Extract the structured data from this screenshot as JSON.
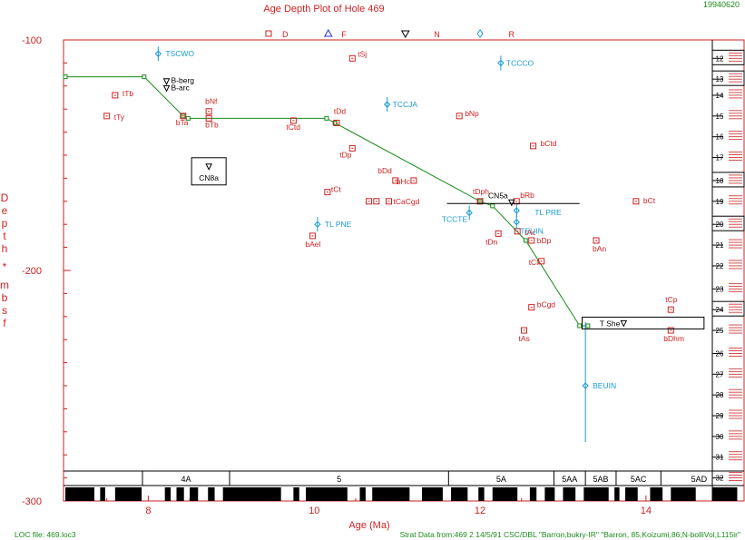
{
  "header": {
    "title": "Age Depth Plot of Hole 469",
    "date_code": "19940620"
  },
  "footer": {
    "loc_file": "LOC file: 469.loc3",
    "strat_source": "Strat Data from:469 2 14/5/91 CSC/DBL \"Barron,bukry-IR\" \"Barron, 85,Koizumi,86;N-bolliVol,L115ir\""
  },
  "colors": {
    "axis": "#cc2222",
    "loc_line": "#1a8a1a",
    "diatom": "#1a9ad4",
    "nanno": "#cc2222",
    "event_black": "#000000"
  },
  "top_markers": [
    {
      "age": 9.45,
      "label": "",
      "symbol": "square",
      "color": "#cc2222"
    },
    {
      "age": 9.65,
      "label": "D",
      "symbol": "",
      "color": "#cc2222"
    },
    {
      "age": 10.17,
      "label": "",
      "symbol": "triangle-up",
      "color": "#2233cc"
    },
    {
      "age": 10.36,
      "label": "F",
      "symbol": "",
      "color": "#cc2222"
    },
    {
      "age": 11.1,
      "label": "",
      "symbol": "triangle-down",
      "color": "#000000"
    },
    {
      "age": 11.48,
      "label": "N",
      "symbol": "",
      "color": "#cc2222"
    },
    {
      "age": 12.0,
      "label": "",
      "symbol": "diamond",
      "color": "#1a9ad4"
    },
    {
      "age": 12.38,
      "label": "R",
      "symbol": "",
      "color": "#cc2222"
    }
  ],
  "chart_data": {
    "type": "scatter",
    "title": "Age Depth Plot of Hole 469",
    "xlabel": "Age (Ma)",
    "ylabel": "Depth * mbsf",
    "xlim": [
      7.0,
      15.1
    ],
    "ylim": [
      -100,
      -300
    ],
    "x_ticks": [
      8,
      10,
      12,
      14
    ],
    "y_ticks": [
      -100,
      -200,
      -300
    ],
    "loc_line": [
      [
        7.0,
        -116
      ],
      [
        7.95,
        -116
      ],
      [
        8.42,
        -133
      ],
      [
        8.48,
        -134
      ],
      [
        10.15,
        -134
      ],
      [
        10.25,
        -136
      ],
      [
        12.0,
        -170
      ],
      [
        12.15,
        -172
      ],
      [
        12.55,
        -187
      ],
      [
        13.2,
        -224
      ],
      [
        13.3,
        -224
      ]
    ],
    "events": [
      {
        "label": "tTb",
        "group": "nanno",
        "age": 7.6,
        "depth": -124
      },
      {
        "label": "tTy",
        "group": "nanno",
        "age": 7.5,
        "depth": -133
      },
      {
        "label": "bTa",
        "group": "nanno",
        "age": 8.42,
        "depth": -133
      },
      {
        "label": "bNf",
        "group": "nanno",
        "age": 8.73,
        "depth": -131
      },
      {
        "label": "bTb",
        "group": "nanno",
        "age": 8.73,
        "depth": -134
      },
      {
        "label": "tCtd",
        "group": "nanno",
        "age": 9.75,
        "depth": -135
      },
      {
        "label": "tSj",
        "group": "nanno",
        "age": 10.46,
        "depth": -108
      },
      {
        "label": "tDd",
        "group": "nanno",
        "age": 10.27,
        "depth": -136
      },
      {
        "label": "tDp",
        "group": "nanno",
        "age": 10.46,
        "depth": -147
      },
      {
        "label": "tCt",
        "group": "nanno",
        "age": 10.16,
        "depth": -166
      },
      {
        "label": "bDd",
        "group": "nanno",
        "age": 10.98,
        "depth": -161
      },
      {
        "label": "bHc",
        "group": "nanno",
        "age": 11.2,
        "depth": -161
      },
      {
        "label": "",
        "group": "nanno",
        "age": 10.66,
        "depth": -170
      },
      {
        "label": "",
        "group": "nanno",
        "age": 10.75,
        "depth": -170
      },
      {
        "label": "tCaCgd",
        "group": "nanno",
        "age": 10.9,
        "depth": -170
      },
      {
        "label": "bAel",
        "group": "nanno",
        "age": 9.98,
        "depth": -185
      },
      {
        "label": "bNp",
        "group": "nanno",
        "age": 11.75,
        "depth": -133
      },
      {
        "label": "bCtd",
        "group": "nanno",
        "age": 12.64,
        "depth": -146
      },
      {
        "label": "tDph",
        "group": "nanno",
        "age": 12.0,
        "depth": -170
      },
      {
        "label": "bRb",
        "group": "nanno",
        "age": 12.44,
        "depth": -170
      },
      {
        "label": "tDn",
        "group": "nanno",
        "age": 12.22,
        "depth": -184
      },
      {
        "label": "tAc",
        "group": "nanno",
        "age": 12.45,
        "depth": -183
      },
      {
        "label": "bDp",
        "group": "nanno",
        "age": 12.62,
        "depth": -187
      },
      {
        "label": "tCl",
        "group": "nanno",
        "age": 12.74,
        "depth": -196
      },
      {
        "label": "bCgd",
        "group": "nanno",
        "age": 12.62,
        "depth": -216
      },
      {
        "label": "tAs",
        "group": "nanno",
        "age": 12.53,
        "depth": -226
      },
      {
        "label": "bAn",
        "group": "nanno",
        "age": 13.4,
        "depth": -187
      },
      {
        "label": "bCt",
        "group": "nanno",
        "age": 13.88,
        "depth": -170
      },
      {
        "label": "tCp",
        "group": "nanno",
        "age": 14.3,
        "depth": -217
      },
      {
        "label": "bDhm",
        "group": "nanno",
        "age": 14.3,
        "depth": -226
      },
      {
        "label": "TSCWO",
        "group": "diatom",
        "age": 8.12,
        "depth": -106
      },
      {
        "label": "TCCCO",
        "group": "diatom",
        "age": 12.25,
        "depth": -110
      },
      {
        "label": "TCCJA",
        "group": "diatom",
        "age": 10.88,
        "depth": -128
      },
      {
        "label": "TL PNE",
        "group": "diatom",
        "age": 10.04,
        "depth": -180
      },
      {
        "label": "TCCTE",
        "group": "diatom",
        "age": 11.87,
        "depth": -175
      },
      {
        "label": "TL PRE",
        "group": "diatom",
        "age": 12.44,
        "depth": -174
      },
      {
        "label": "TEUIN",
        "group": "diatom",
        "age": 12.44,
        "depth": -179
      },
      {
        "label": "BEUIN",
        "group": "diatom",
        "age": 13.27,
        "depth": -250
      },
      {
        "label": "B-berg",
        "group": "black",
        "age": 8.22,
        "depth": -118
      },
      {
        "label": "B-arc",
        "group": "black",
        "age": 8.22,
        "depth": -121
      },
      {
        "label": "CN5a",
        "group": "black",
        "age": 12.38,
        "depth": -169
      },
      {
        "label": "T She",
        "group": "black",
        "age": 13.6,
        "depth": -223
      },
      {
        "label": "CN8a",
        "group": "black",
        "age": 8.73,
        "depth": -157
      }
    ],
    "cores": [
      "12",
      "13",
      "14",
      "15",
      "16",
      "17",
      "18",
      "19",
      "20",
      "21",
      "22",
      "23",
      "24",
      "25",
      "26",
      "27",
      "28",
      "29",
      "30",
      "31",
      "32"
    ],
    "zones": [
      {
        "label": "4A",
        "start": 7.93,
        "end": 8.98
      },
      {
        "label": "5",
        "start": 8.98,
        "end": 11.62
      },
      {
        "label": "5A",
        "start": 11.62,
        "end": 12.89
      },
      {
        "label": "5AA",
        "start": 12.89,
        "end": 13.27
      },
      {
        "label": "5AB",
        "start": 13.27,
        "end": 13.64
      },
      {
        "label": "5AC",
        "start": 13.64,
        "end": 14.18
      },
      {
        "label": "5AD",
        "start": 14.18,
        "end": 15.1
      }
    ],
    "magnetic_chrons": [
      [
        7.0,
        7.35
      ],
      [
        7.42,
        7.48
      ],
      [
        7.6,
        7.92
      ],
      [
        8.2,
        8.27
      ],
      [
        8.34,
        8.43
      ],
      [
        8.5,
        8.6
      ],
      [
        8.72,
        8.8
      ],
      [
        8.9,
        9.6
      ],
      [
        9.75,
        9.82
      ],
      [
        9.9,
        10.4
      ],
      [
        10.55,
        10.62
      ],
      [
        10.7,
        11.15
      ],
      [
        11.3,
        11.55
      ],
      [
        11.65,
        11.85
      ],
      [
        11.98,
        12.05
      ],
      [
        12.15,
        12.45
      ],
      [
        12.6,
        12.68
      ],
      [
        12.78,
        12.9
      ],
      [
        13.0,
        13.15
      ],
      [
        13.25,
        13.55
      ],
      [
        13.62,
        13.68
      ],
      [
        13.75,
        13.9
      ],
      [
        14.05,
        14.2
      ],
      [
        14.3,
        14.6
      ],
      [
        14.8,
        15.1
      ]
    ]
  }
}
